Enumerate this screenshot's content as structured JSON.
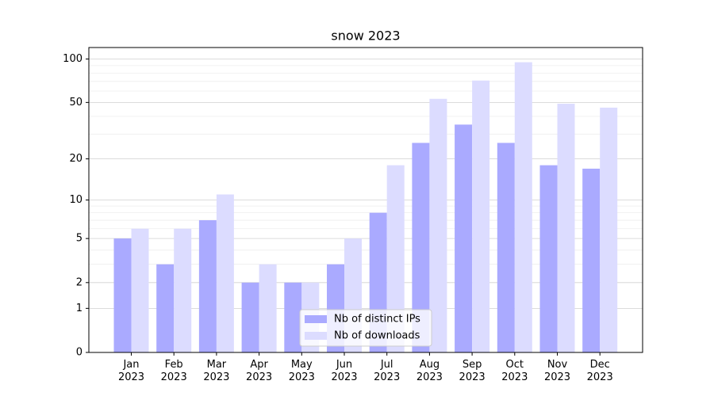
{
  "chart_data": {
    "type": "bar",
    "title": "snow 2023",
    "categories": [
      "Jan\n2023",
      "Feb\n2023",
      "Mar\n2023",
      "Apr\n2023",
      "May\n2023",
      "Jun\n2023",
      "Jul\n2023",
      "Aug\n2023",
      "Sep\n2023",
      "Oct\n2023",
      "Nov\n2023",
      "Dec\n2023"
    ],
    "series": [
      {
        "name": "Nb of distinct IPs",
        "color": "#aaaaff",
        "values": [
          5,
          3,
          7,
          2,
          2,
          3,
          8,
          26,
          35,
          26,
          18,
          17
        ]
      },
      {
        "name": "Nb of downloads",
        "color": "#dcdcff",
        "values": [
          6,
          6,
          11,
          3,
          2,
          5,
          18,
          53,
          71,
          95,
          49,
          46
        ]
      }
    ],
    "yscale": "log1p",
    "ylim": [
      0,
      120
    ],
    "yticks": [
      0,
      1,
      2,
      5,
      10,
      20,
      50,
      100
    ],
    "yminorticks": [
      3,
      4,
      6,
      7,
      8,
      9,
      30,
      40,
      60,
      70,
      80,
      90
    ],
    "grid": true,
    "legend": "lower center"
  }
}
